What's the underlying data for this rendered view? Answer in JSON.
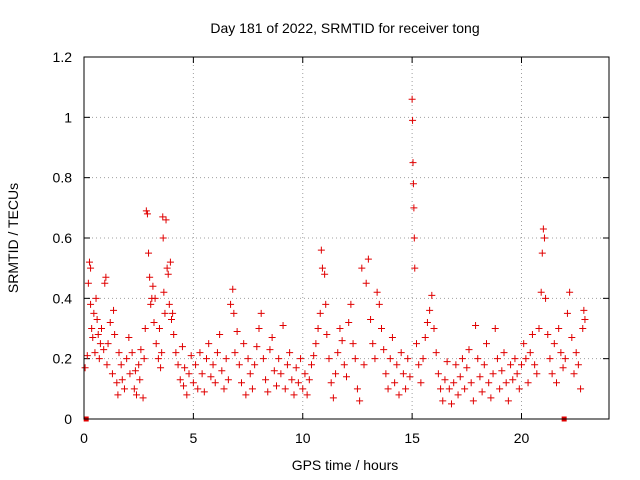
{
  "chart_data": {
    "type": "scatter",
    "title": "Day 181 of 2022, SRMTID for receiver tong",
    "xlabel": "GPS time / hours",
    "ylabel": "SRMTID / TECUs",
    "xlim": [
      0,
      24
    ],
    "ylim": [
      0,
      1.2
    ],
    "xticks": [
      0,
      5,
      10,
      15,
      20
    ],
    "yticks": [
      0,
      0.2,
      0.4,
      0.6,
      0.8,
      1,
      1.2
    ],
    "ytick_labels": [
      "0",
      "0.2",
      "0.4",
      "0.6",
      "0.8",
      "1",
      "1.2"
    ],
    "grid": true,
    "marker": "+",
    "color": "#e00000",
    "series": [
      {
        "name": "SRMTID",
        "points": [
          [
            0.05,
            0.17
          ],
          [
            0.15,
            0.21
          ],
          [
            0.2,
            0.45
          ],
          [
            0.25,
            0.52
          ],
          [
            0.3,
            0.5
          ],
          [
            0.3,
            0.38
          ],
          [
            0.35,
            0.3
          ],
          [
            0.4,
            0.27
          ],
          [
            0.45,
            0.35
          ],
          [
            0.5,
            0.22
          ],
          [
            0.55,
            0.4
          ],
          [
            0.6,
            0.33
          ],
          [
            0.65,
            0.28
          ],
          [
            0.7,
            0.2
          ],
          [
            0.75,
            0.25
          ],
          [
            0.8,
            0.3
          ],
          [
            0.9,
            0.23
          ],
          [
            0.95,
            0.45
          ],
          [
            1.0,
            0.47
          ],
          [
            1.05,
            0.18
          ],
          [
            1.1,
            0.25
          ],
          [
            1.2,
            0.32
          ],
          [
            1.3,
            0.15
          ],
          [
            1.35,
            0.36
          ],
          [
            1.4,
            0.28
          ],
          [
            1.5,
            0.12
          ],
          [
            1.55,
            0.08
          ],
          [
            1.6,
            0.22
          ],
          [
            1.7,
            0.18
          ],
          [
            1.75,
            0.13
          ],
          [
            1.85,
            0.1
          ],
          [
            1.95,
            0.2
          ],
          [
            2.05,
            0.27
          ],
          [
            2.1,
            0.15
          ],
          [
            2.2,
            0.22
          ],
          [
            2.3,
            0.1
          ],
          [
            2.35,
            0.16
          ],
          [
            2.4,
            0.08
          ],
          [
            2.5,
            0.18
          ],
          [
            2.55,
            0.13
          ],
          [
            2.6,
            0.23
          ],
          [
            2.7,
            0.07
          ],
          [
            2.75,
            0.2
          ],
          [
            2.8,
            0.3
          ],
          [
            2.85,
            0.69
          ],
          [
            2.9,
            0.68
          ],
          [
            2.95,
            0.55
          ],
          [
            3.0,
            0.47
          ],
          [
            3.05,
            0.38
          ],
          [
            3.1,
            0.4
          ],
          [
            3.15,
            0.44
          ],
          [
            3.2,
            0.32
          ],
          [
            3.25,
            0.4
          ],
          [
            3.3,
            0.25
          ],
          [
            3.4,
            0.2
          ],
          [
            3.45,
            0.3
          ],
          [
            3.5,
            0.17
          ],
          [
            3.55,
            0.22
          ],
          [
            3.6,
            0.67
          ],
          [
            3.62,
            0.6
          ],
          [
            3.65,
            0.42
          ],
          [
            3.7,
            0.35
          ],
          [
            3.75,
            0.66
          ],
          [
            3.8,
            0.5
          ],
          [
            3.85,
            0.48
          ],
          [
            3.9,
            0.38
          ],
          [
            3.95,
            0.52
          ],
          [
            4.0,
            0.33
          ],
          [
            4.05,
            0.35
          ],
          [
            4.1,
            0.28
          ],
          [
            4.2,
            0.22
          ],
          [
            4.3,
            0.18
          ],
          [
            4.4,
            0.13
          ],
          [
            4.5,
            0.24
          ],
          [
            4.55,
            0.11
          ],
          [
            4.6,
            0.17
          ],
          [
            4.7,
            0.08
          ],
          [
            4.8,
            0.15
          ],
          [
            4.9,
            0.21
          ],
          [
            5.0,
            0.12
          ],
          [
            5.1,
            0.18
          ],
          [
            5.2,
            0.1
          ],
          [
            5.3,
            0.22
          ],
          [
            5.4,
            0.15
          ],
          [
            5.5,
            0.09
          ],
          [
            5.6,
            0.2
          ],
          [
            5.7,
            0.25
          ],
          [
            5.8,
            0.14
          ],
          [
            5.9,
            0.18
          ],
          [
            6.0,
            0.12
          ],
          [
            6.1,
            0.22
          ],
          [
            6.2,
            0.28
          ],
          [
            6.3,
            0.16
          ],
          [
            6.4,
            0.1
          ],
          [
            6.5,
            0.2
          ],
          [
            6.6,
            0.13
          ],
          [
            6.7,
            0.38
          ],
          [
            6.8,
            0.43
          ],
          [
            6.85,
            0.35
          ],
          [
            6.9,
            0.22
          ],
          [
            7.0,
            0.29
          ],
          [
            7.1,
            0.18
          ],
          [
            7.2,
            0.12
          ],
          [
            7.3,
            0.25
          ],
          [
            7.4,
            0.08
          ],
          [
            7.5,
            0.2
          ],
          [
            7.6,
            0.15
          ],
          [
            7.7,
            0.1
          ],
          [
            7.8,
            0.18
          ],
          [
            7.9,
            0.24
          ],
          [
            8.0,
            0.3
          ],
          [
            8.1,
            0.35
          ],
          [
            8.2,
            0.2
          ],
          [
            8.3,
            0.13
          ],
          [
            8.4,
            0.09
          ],
          [
            8.5,
            0.23
          ],
          [
            8.6,
            0.27
          ],
          [
            8.7,
            0.16
          ],
          [
            8.8,
            0.11
          ],
          [
            8.9,
            0.2
          ],
          [
            9.0,
            0.15
          ],
          [
            9.1,
            0.31
          ],
          [
            9.2,
            0.1
          ],
          [
            9.3,
            0.18
          ],
          [
            9.4,
            0.22
          ],
          [
            9.5,
            0.13
          ],
          [
            9.6,
            0.08
          ],
          [
            9.7,
            0.17
          ],
          [
            9.8,
            0.12
          ],
          [
            9.9,
            0.2
          ],
          [
            10.0,
            0.1
          ],
          [
            10.1,
            0.15
          ],
          [
            10.2,
            0.08
          ],
          [
            10.3,
            0.13
          ],
          [
            10.4,
            0.18
          ],
          [
            10.5,
            0.21
          ],
          [
            10.6,
            0.25
          ],
          [
            10.7,
            0.3
          ],
          [
            10.8,
            0.35
          ],
          [
            10.85,
            0.56
          ],
          [
            10.9,
            0.5
          ],
          [
            11.0,
            0.48
          ],
          [
            11.05,
            0.38
          ],
          [
            11.1,
            0.28
          ],
          [
            11.2,
            0.2
          ],
          [
            11.3,
            0.12
          ],
          [
            11.4,
            0.07
          ],
          [
            11.5,
            0.15
          ],
          [
            11.6,
            0.22
          ],
          [
            11.7,
            0.3
          ],
          [
            11.8,
            0.26
          ],
          [
            11.9,
            0.18
          ],
          [
            12.0,
            0.14
          ],
          [
            12.1,
            0.32
          ],
          [
            12.2,
            0.38
          ],
          [
            12.3,
            0.25
          ],
          [
            12.4,
            0.2
          ],
          [
            12.5,
            0.1
          ],
          [
            12.6,
            0.06
          ],
          [
            12.7,
            0.5
          ],
          [
            12.8,
            0.18
          ],
          [
            12.9,
            0.45
          ],
          [
            13.0,
            0.53
          ],
          [
            13.1,
            0.33
          ],
          [
            13.2,
            0.25
          ],
          [
            13.3,
            0.2
          ],
          [
            13.4,
            0.42
          ],
          [
            13.5,
            0.38
          ],
          [
            13.6,
            0.3
          ],
          [
            13.7,
            0.23
          ],
          [
            13.8,
            0.15
          ],
          [
            13.9,
            0.1
          ],
          [
            14.0,
            0.2
          ],
          [
            14.1,
            0.27
          ],
          [
            14.2,
            0.12
          ],
          [
            14.3,
            0.18
          ],
          [
            14.4,
            0.08
          ],
          [
            14.5,
            0.22
          ],
          [
            14.6,
            0.15
          ],
          [
            14.7,
            0.1
          ],
          [
            14.8,
            0.2
          ],
          [
            14.9,
            0.14
          ],
          [
            15.0,
            1.06
          ],
          [
            15.02,
            0.99
          ],
          [
            15.04,
            0.85
          ],
          [
            15.06,
            0.78
          ],
          [
            15.08,
            0.7
          ],
          [
            15.1,
            0.6
          ],
          [
            15.12,
            0.5
          ],
          [
            15.2,
            0.25
          ],
          [
            15.3,
            0.18
          ],
          [
            15.4,
            0.12
          ],
          [
            15.5,
            0.2
          ],
          [
            15.6,
            0.27
          ],
          [
            15.7,
            0.32
          ],
          [
            15.8,
            0.36
          ],
          [
            15.9,
            0.41
          ],
          [
            16.0,
            0.3
          ],
          [
            16.1,
            0.22
          ],
          [
            16.2,
            0.15
          ],
          [
            16.3,
            0.1
          ],
          [
            16.4,
            0.06
          ],
          [
            16.5,
            0.13
          ],
          [
            16.6,
            0.19
          ],
          [
            16.7,
            0.1
          ],
          [
            16.8,
            0.05
          ],
          [
            16.9,
            0.12
          ],
          [
            17.0,
            0.18
          ],
          [
            17.1,
            0.08
          ],
          [
            17.2,
            0.14
          ],
          [
            17.3,
            0.2
          ],
          [
            17.4,
            0.1
          ],
          [
            17.5,
            0.17
          ],
          [
            17.6,
            0.23
          ],
          [
            17.7,
            0.12
          ],
          [
            17.8,
            0.06
          ],
          [
            17.9,
            0.31
          ],
          [
            18.0,
            0.2
          ],
          [
            18.1,
            0.14
          ],
          [
            18.2,
            0.09
          ],
          [
            18.3,
            0.18
          ],
          [
            18.4,
            0.25
          ],
          [
            18.5,
            0.12
          ],
          [
            18.6,
            0.07
          ],
          [
            18.7,
            0.15
          ],
          [
            18.8,
            0.3
          ],
          [
            18.9,
            0.2
          ],
          [
            19.0,
            0.1
          ],
          [
            19.1,
            0.16
          ],
          [
            19.2,
            0.22
          ],
          [
            19.3,
            0.12
          ],
          [
            19.4,
            0.06
          ],
          [
            19.5,
            0.18
          ],
          [
            19.6,
            0.13
          ],
          [
            19.7,
            0.2
          ],
          [
            19.8,
            0.15
          ],
          [
            19.9,
            0.1
          ],
          [
            20.0,
            0.18
          ],
          [
            20.1,
            0.25
          ],
          [
            20.2,
            0.2
          ],
          [
            20.3,
            0.12
          ],
          [
            20.4,
            0.22
          ],
          [
            20.5,
            0.28
          ],
          [
            20.6,
            0.18
          ],
          [
            20.7,
            0.15
          ],
          [
            20.8,
            0.3
          ],
          [
            20.9,
            0.42
          ],
          [
            20.95,
            0.55
          ],
          [
            21.0,
            0.63
          ],
          [
            21.05,
            0.6
          ],
          [
            21.1,
            0.4
          ],
          [
            21.2,
            0.28
          ],
          [
            21.3,
            0.2
          ],
          [
            21.4,
            0.15
          ],
          [
            21.5,
            0.25
          ],
          [
            21.6,
            0.12
          ],
          [
            21.7,
            0.3
          ],
          [
            21.8,
            0.22
          ],
          [
            21.9,
            0.17
          ],
          [
            22.0,
            0.2
          ],
          [
            22.1,
            0.35
          ],
          [
            22.2,
            0.42
          ],
          [
            22.3,
            0.27
          ],
          [
            22.4,
            0.15
          ],
          [
            22.5,
            0.22
          ],
          [
            22.6,
            0.18
          ],
          [
            22.7,
            0.1
          ],
          [
            22.8,
            0.3
          ],
          [
            22.85,
            0.36
          ],
          [
            22.9,
            0.33
          ]
        ]
      },
      {
        "name": "zero-level markers",
        "marker": "square",
        "points": [
          [
            0.1,
            0
          ],
          [
            21.95,
            0
          ]
        ]
      }
    ]
  }
}
